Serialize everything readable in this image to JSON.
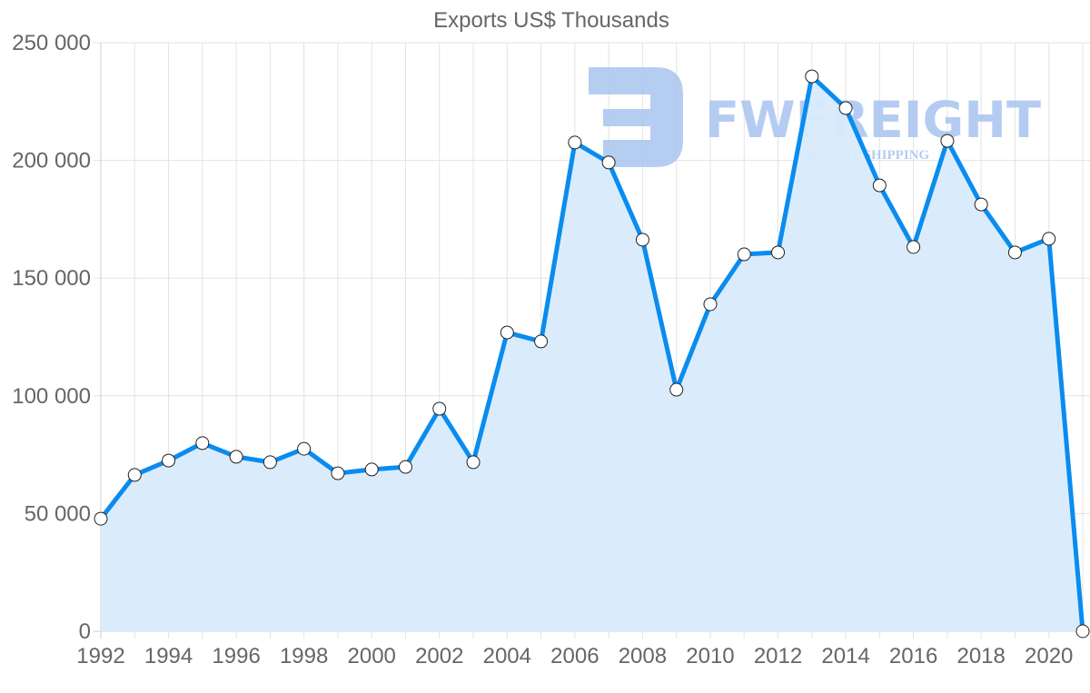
{
  "chart_data": {
    "type": "area",
    "title": "Exports US$ Thousands",
    "xlabel": "",
    "ylabel": "",
    "x": [
      1992,
      1993,
      1994,
      1995,
      1996,
      1997,
      1998,
      1999,
      2000,
      2001,
      2002,
      2003,
      2004,
      2005,
      2006,
      2007,
      2008,
      2009,
      2010,
      2011,
      2012,
      2013,
      2014,
      2015,
      2016,
      2017,
      2018,
      2019,
      2020,
      2021
    ],
    "series": [
      {
        "name": "Exports US$ Thousands",
        "values": [
          47800,
          66400,
          72500,
          79900,
          74100,
          71800,
          77500,
          67100,
          68700,
          69800,
          94500,
          71800,
          126900,
          123100,
          207600,
          199100,
          166300,
          102600,
          138900,
          160100,
          160900,
          235700,
          222200,
          189400,
          163200,
          208300,
          181300,
          160900,
          166700,
          0
        ]
      }
    ],
    "ylim": [
      0,
      250000
    ],
    "yticks": [
      0,
      50000,
      100000,
      150000,
      200000,
      250000
    ],
    "ytick_labels": [
      "0",
      "50 000",
      "100 000",
      "150 000",
      "200 000",
      "250 000"
    ],
    "xticks": [
      1992,
      1994,
      1996,
      1998,
      2000,
      2002,
      2004,
      2006,
      2008,
      2010,
      2012,
      2014,
      2016,
      2018,
      2020
    ],
    "xtick_labels": [
      "1992",
      "1994",
      "1996",
      "1998",
      "2000",
      "2002",
      "2004",
      "2006",
      "2008",
      "2010",
      "2012",
      "2014",
      "2016",
      "2018",
      "2020"
    ],
    "grid": true,
    "legend": "none",
    "colors": {
      "line": "#0a8cef",
      "fill": "#d8ebfc",
      "point_fill": "#ffffff",
      "point_stroke": "#222222",
      "grid": "#e3e3e3",
      "text": "#666666"
    }
  },
  "watermark": {
    "brand": "FWFREIGHT",
    "tagline": "FREIGHT SHIPPING",
    "color": "#a9c4f0"
  }
}
